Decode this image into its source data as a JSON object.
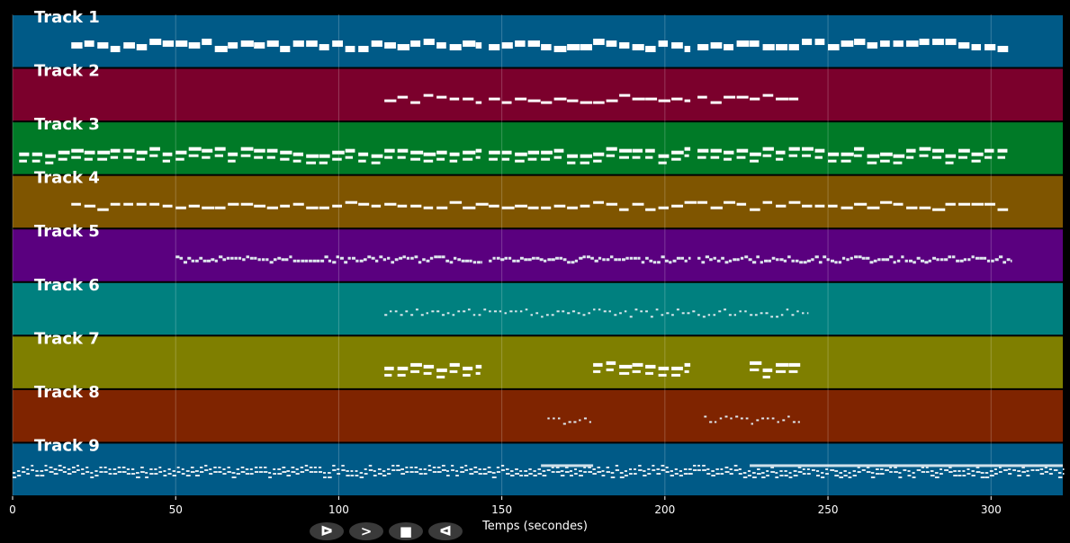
{
  "chart_data": {
    "type": "piano-roll",
    "xlabel": "Temps (secondes)",
    "xlim": [
      0,
      322
    ],
    "xticks": [
      0,
      50,
      100,
      150,
      200,
      250,
      300
    ],
    "grid": true,
    "tracks": [
      {
        "name": "Track 1",
        "color": "#005a87",
        "regions": [
          [
            18,
            144
          ],
          [
            146,
            208
          ],
          [
            210,
            306
          ]
        ],
        "style": "block"
      },
      {
        "name": "Track 2",
        "color": "#7b002c",
        "regions": [
          [
            114,
            144
          ],
          [
            146,
            208
          ],
          [
            210,
            242
          ]
        ],
        "style": "thin"
      },
      {
        "name": "Track 3",
        "color": "#007a27",
        "regions": [
          [
            2,
            144
          ],
          [
            146,
            208
          ],
          [
            210,
            306
          ]
        ],
        "style": "double"
      },
      {
        "name": "Track 4",
        "color": "#7f5500",
        "regions": [
          [
            18,
            306
          ]
        ],
        "style": "thin"
      },
      {
        "name": "Track 5",
        "color": "#5a007f",
        "regions": [
          [
            50,
            144
          ],
          [
            146,
            208
          ],
          [
            210,
            306
          ]
        ],
        "style": "dense"
      },
      {
        "name": "Track 6",
        "color": "#00807f",
        "regions": [
          [
            114,
            244
          ]
        ],
        "style": "dots"
      },
      {
        "name": "Track 7",
        "color": "#7f7f00",
        "regions": [
          [
            114,
            144
          ],
          [
            178,
            208
          ],
          [
            226,
            242
          ]
        ],
        "style": "double"
      },
      {
        "name": "Track 8",
        "color": "#7f2400",
        "regions": [
          [
            164,
            178
          ],
          [
            212,
            242
          ]
        ],
        "style": "dots"
      },
      {
        "name": "Track 9",
        "color": "#005a87",
        "regions": [
          [
            0,
            322
          ]
        ],
        "style": "drums",
        "sustain": [
          [
            162,
            178
          ],
          [
            226,
            322
          ]
        ]
      }
    ]
  },
  "controls": [
    {
      "name": "play",
      "glyph": "ᐅ"
    },
    {
      "name": "forward",
      "glyph": ">"
    },
    {
      "name": "stop",
      "glyph": "■"
    },
    {
      "name": "back",
      "glyph": "ᐊ"
    }
  ]
}
